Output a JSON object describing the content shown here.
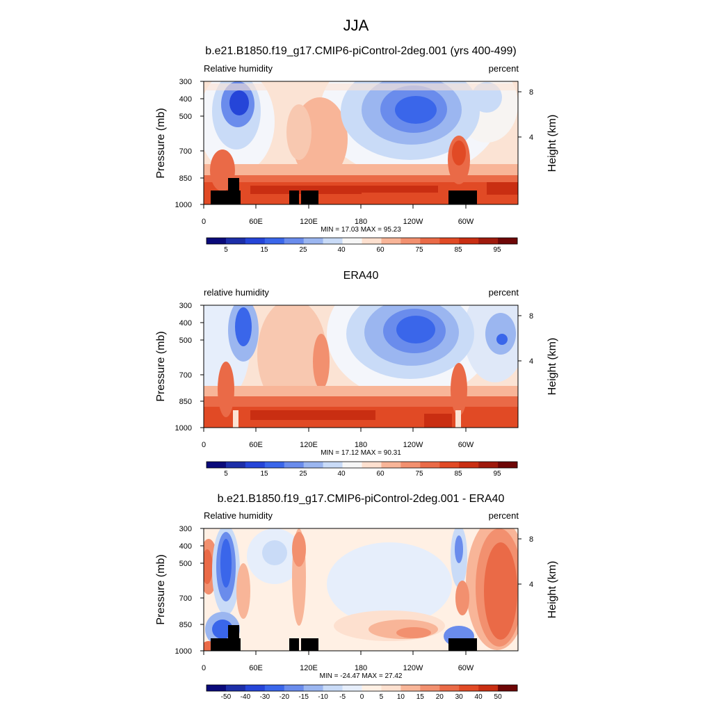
{
  "figure_title": "JJA",
  "chart_data": [
    {
      "type": "heatmap",
      "title": "b.e21.B1850.f19_g17.CMIP6-piControl-2deg.001 (yrs 400-499)",
      "left_label": "Relative humidity",
      "right_label": "percent",
      "ylabel": "Pressure (mb)",
      "ylabel_right": "Height (km)",
      "y_ticks": [
        "300",
        "400",
        "500",
        "700",
        "850",
        "1000"
      ],
      "y_right_ticks": [
        "8",
        "4"
      ],
      "x_ticks": [
        "0",
        "60E",
        "120E",
        "180",
        "120W",
        "60W"
      ],
      "stats": "MIN =  17.03  MAX =  95.23",
      "colorbar_labels": [
        "5",
        "15",
        "25",
        "40",
        "60",
        "75",
        "85",
        "95"
      ],
      "terrain": true,
      "min": 17.03,
      "max": 95.23
    },
    {
      "type": "heatmap",
      "title": "ERA40",
      "left_label": "relative humidity",
      "right_label": "percent",
      "ylabel": "Pressure (mb)",
      "ylabel_right": "Height (km)",
      "y_ticks": [
        "300",
        "400",
        "500",
        "700",
        "850",
        "1000"
      ],
      "y_right_ticks": [
        "8",
        "4"
      ],
      "x_ticks": [
        "0",
        "60E",
        "120E",
        "180",
        "120W",
        "60W"
      ],
      "stats": "MIN =  17.12  MAX =  90.31",
      "colorbar_labels": [
        "5",
        "15",
        "25",
        "40",
        "60",
        "75",
        "85",
        "95"
      ],
      "terrain": false,
      "min": 17.12,
      "max": 90.31
    },
    {
      "type": "heatmap",
      "title": "b.e21.B1850.f19_g17.CMIP6-piControl-2deg.001 - ERA40",
      "left_label": "Relative humidity",
      "right_label": "percent",
      "ylabel": "Pressure (mb)",
      "ylabel_right": "Height (km)",
      "y_ticks": [
        "300",
        "400",
        "500",
        "700",
        "850",
        "1000"
      ],
      "y_right_ticks": [
        "8",
        "4"
      ],
      "x_ticks": [
        "0",
        "60E",
        "120E",
        "180",
        "120W",
        "60W"
      ],
      "stats": "MIN = -24.47  MAX =  27.42",
      "colorbar_labels": [
        "-50",
        "-40",
        "-30",
        "-20",
        "-15",
        "-10",
        "-5",
        "0",
        "5",
        "10",
        "15",
        "20",
        "30",
        "40",
        "50"
      ],
      "terrain": true,
      "min": -24.47,
      "max": 27.42
    }
  ],
  "colors": {
    "panel_a_colorbar": [
      "#0a0a7a",
      "#1c2ea8",
      "#2545d8",
      "#3a66ea",
      "#6a8cec",
      "#9bb6f0",
      "#c9dbf7",
      "#f6f6f6",
      "#fde0cf",
      "#f8b598",
      "#f2906f",
      "#ea6a47",
      "#e14a25",
      "#c92e12",
      "#9f1a0d",
      "#6e0606"
    ],
    "panel_c_colorbar": [
      "#0a0a7a",
      "#1c2ea8",
      "#2545d8",
      "#3a66ea",
      "#6a8cec",
      "#9bb6f0",
      "#c9dbf7",
      "#e6eefb",
      "#fff0e4",
      "#fde0cf",
      "#f8b598",
      "#f2906f",
      "#ea6a47",
      "#e14a25",
      "#c92e12",
      "#6e0606"
    ],
    "terrain": "#000000"
  }
}
